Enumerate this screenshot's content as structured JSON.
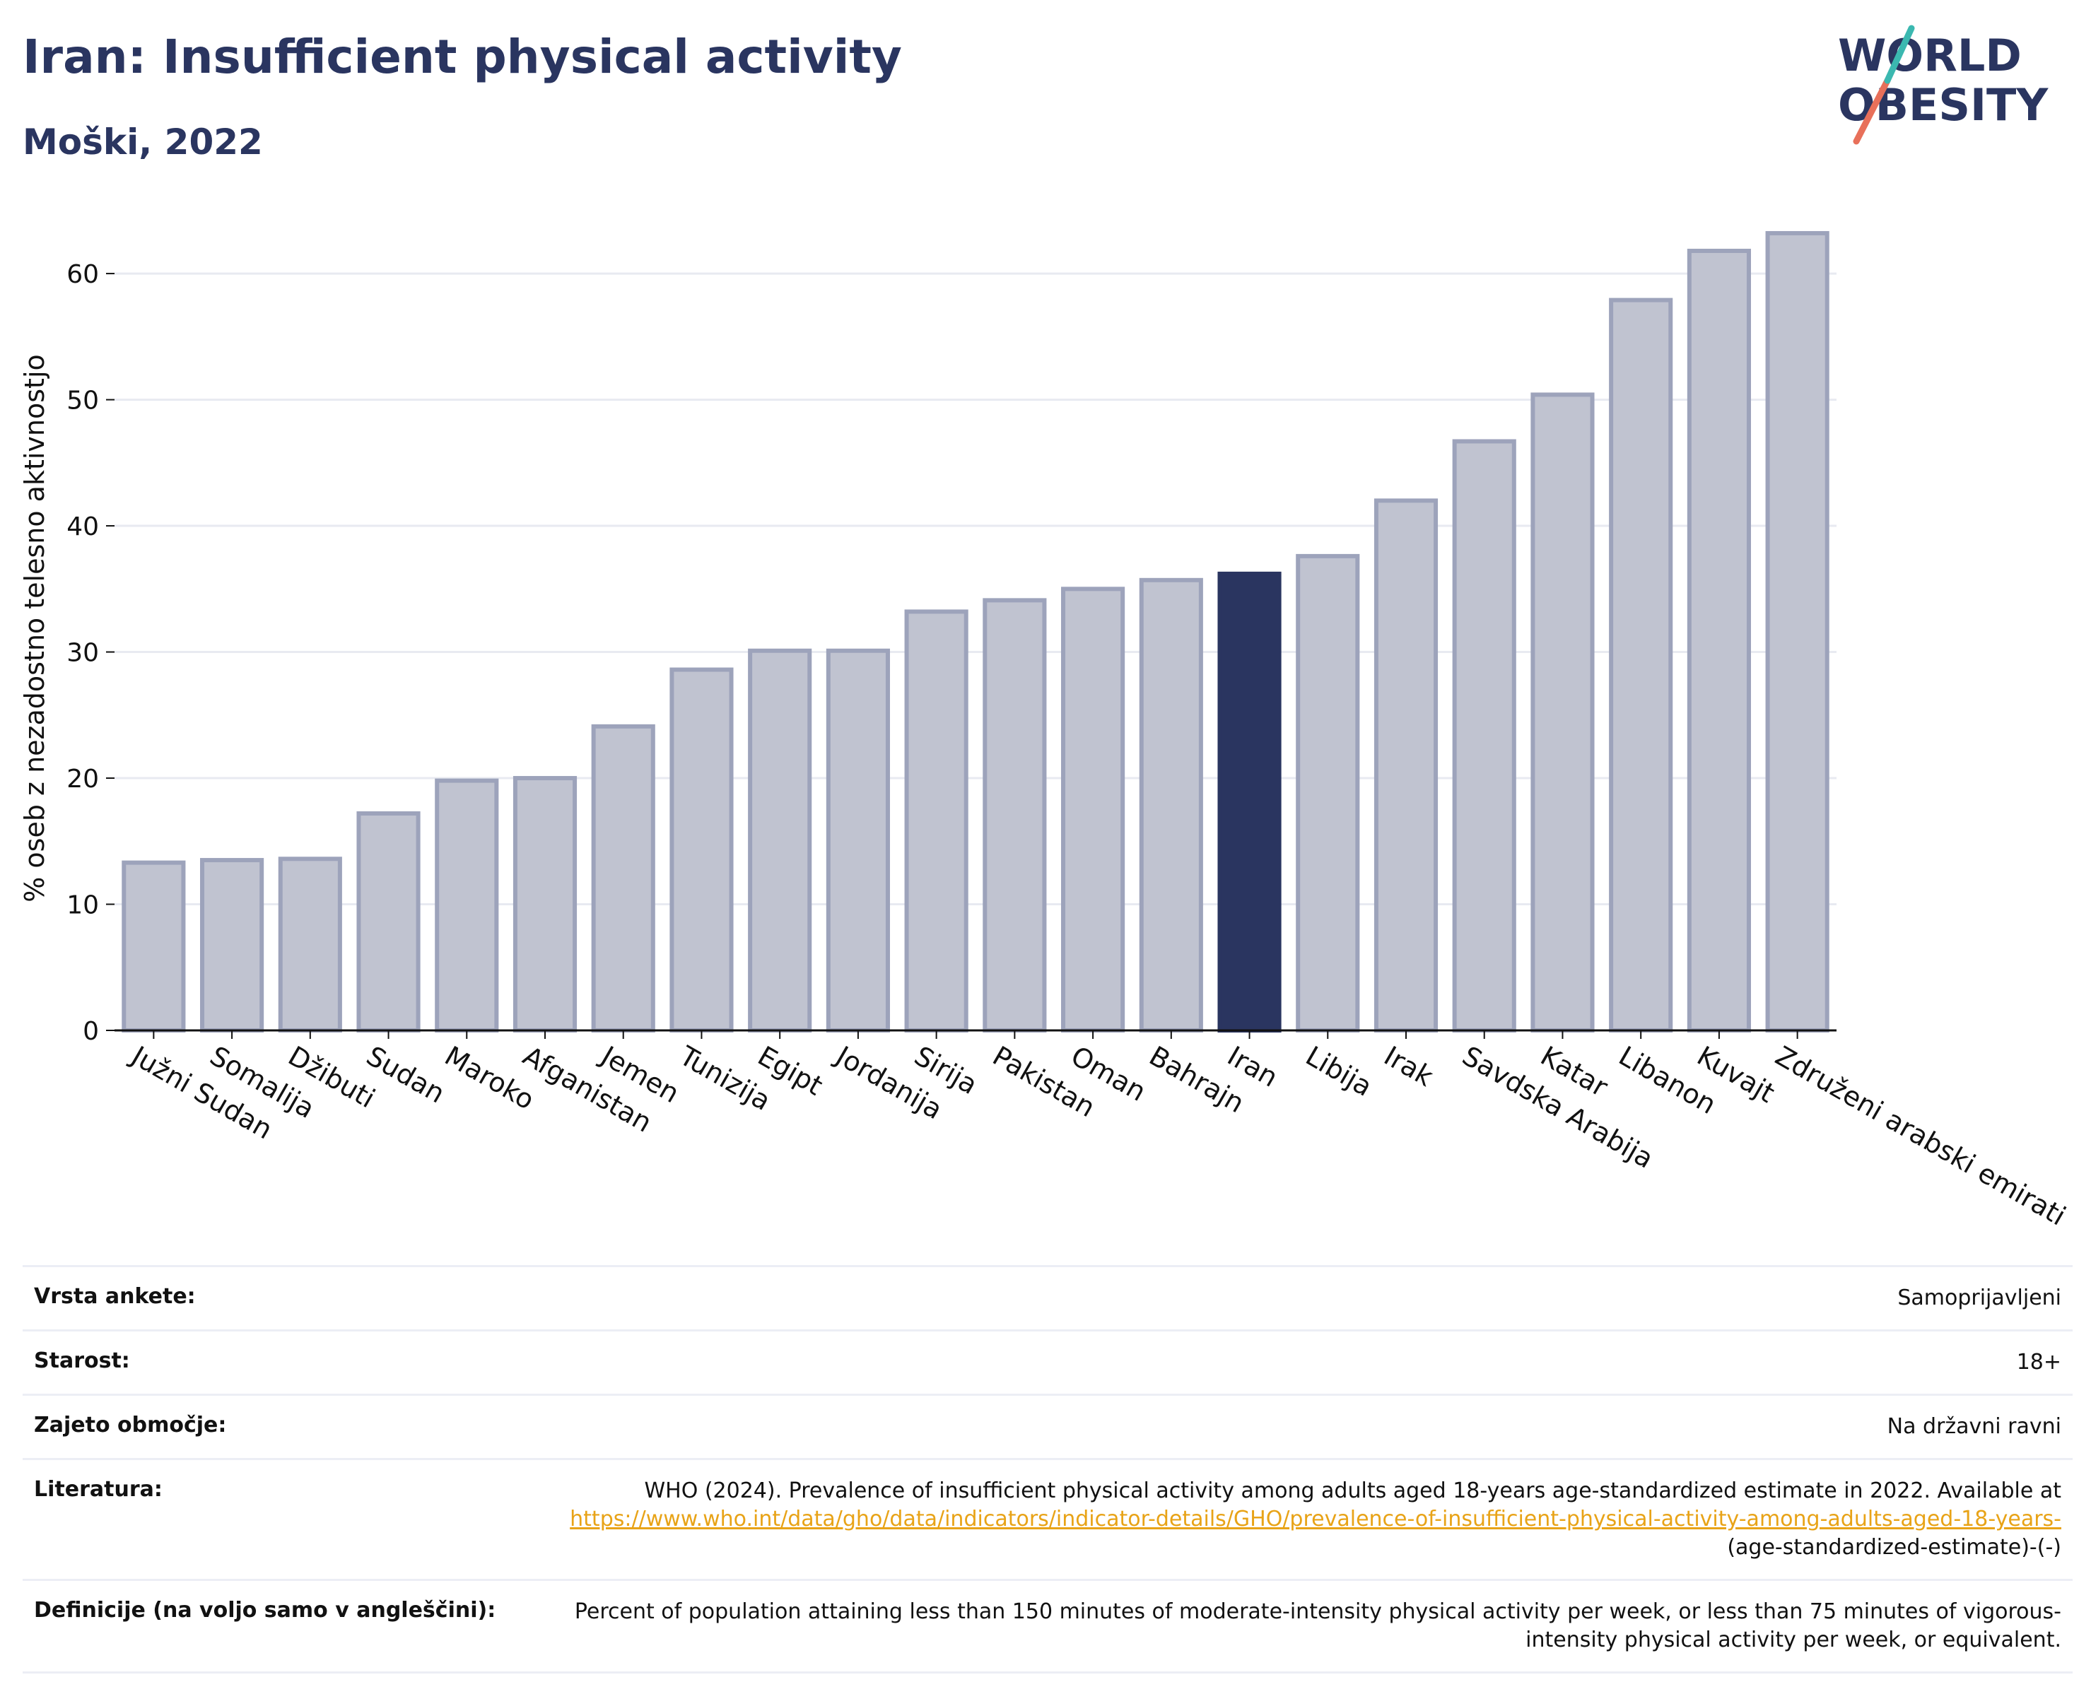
{
  "header": {
    "title": "Iran: Insufficient physical activity",
    "subtitle": "Moški, 2022"
  },
  "logo": {
    "line1": "WORLD",
    "line2": "OBESITY",
    "colors": [
      "#2a3560",
      "#e8705a",
      "#3bb8b0"
    ]
  },
  "chart_data": {
    "type": "bar",
    "ylabel": "% oseb z nezadostno telesno aktivnostjo",
    "ylim": [
      0,
      66
    ],
    "yticks": [
      0,
      10,
      20,
      30,
      40,
      50,
      60
    ],
    "grid": true,
    "highlight": "Iran",
    "colors": {
      "bar": "#c0c3d0",
      "bar_edge": "#9da3bb",
      "highlight": "#2a3560",
      "grid": "#e8eaf1",
      "axis": "#111111"
    },
    "categories": [
      "Južni Sudan",
      "Somalija",
      "Džibuti",
      "Sudan",
      "Maroko",
      "Afganistan",
      "Jemen",
      "Tunizija",
      "Egipt",
      "Jordanija",
      "Sirija",
      "Pakistan",
      "Oman",
      "Bahrajn",
      "Iran",
      "Libija",
      "Irak",
      "Savdska Arabija",
      "Katar",
      "Libanon",
      "Kuvajt",
      "Združeni arabski emirati"
    ],
    "values": [
      13.3,
      13.5,
      13.6,
      17.2,
      19.8,
      20.0,
      24.1,
      28.6,
      30.1,
      30.1,
      33.2,
      34.1,
      35.0,
      35.7,
      36.2,
      37.6,
      42.0,
      46.7,
      50.4,
      57.9,
      61.8,
      63.2
    ]
  },
  "info": {
    "survey_label": "Vrsta ankete:",
    "survey_value": "Samoprijavljeni",
    "age_label": "Starost:",
    "age_value": "18+",
    "coverage_label": "Zajeto območje:",
    "coverage_value": "Na državni ravni",
    "ref_label": "Literatura:",
    "ref_text": "WHO (2024). Prevalence of insufficient physical activity among adults aged 18-years age-standardized estimate in 2022. Available at ",
    "ref_link": "https://www.who.int/data/gho/data/indicators/indicator-details/GHO/prevalence-of-insufficient-physical-activity-among-adults-aged-18-years-",
    "ref_suffix": "(age-standardized-estimate)-(-)",
    "def_label": "Definicije (na voljo samo v angleščini):",
    "def_value": "Percent of population attaining less than 150 minutes of moderate-intensity physical activity per week, or less than 75 minutes of vigorous-intensity physical activity per week, or equivalent."
  }
}
